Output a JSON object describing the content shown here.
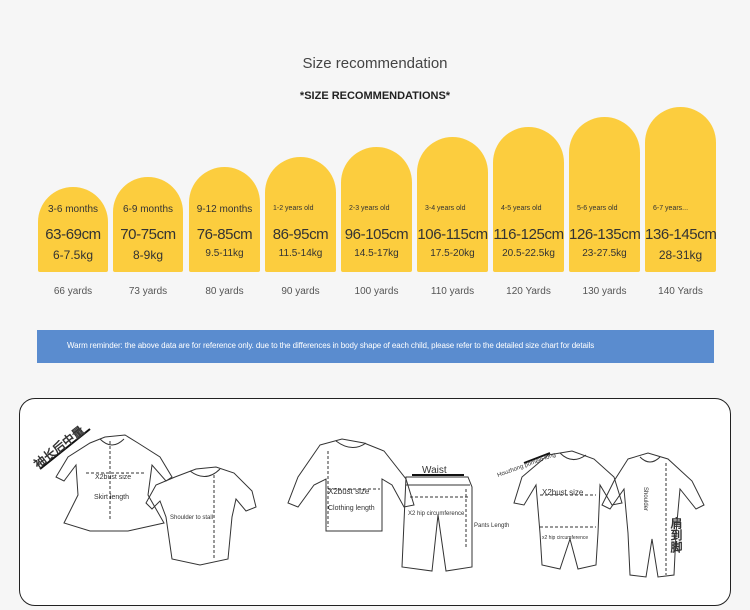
{
  "title": "Size recommendation",
  "subtitle": "*SIZE RECOMMENDATIONS*",
  "colors": {
    "pill": "#fccd3e",
    "banner": "#5a8ccf",
    "background": "#f6f6f6"
  },
  "sizes": [
    {
      "age": "3-6 months",
      "height": "63-69cm",
      "weight": "6-7.5kg",
      "yards": "66 yards"
    },
    {
      "age": "6-9 months",
      "height": "70-75cm",
      "weight": "8-9kg",
      "yards": "73 yards"
    },
    {
      "age": "9-12 months",
      "height": "76-85cm",
      "weight": "9.5-11kg",
      "yards": "80 yards"
    },
    {
      "age": "1-2 years old",
      "height": "86-95cm",
      "weight": "11.5-14kg",
      "yards": "90 yards"
    },
    {
      "age": "2-3 years old",
      "height": "96-105cm",
      "weight": "14.5-17kg",
      "yards": "100 yards"
    },
    {
      "age": "3-4 years old",
      "height": "106-115cm",
      "weight": "17.5-20kg",
      "yards": "110 yards"
    },
    {
      "age": "4-5 years old",
      "height": "116-125cm",
      "weight": "20.5-22.5kg",
      "yards": "120 Yards"
    },
    {
      "age": "5-6 years old",
      "height": "126-135cm",
      "weight": "23-27.5kg",
      "yards": "130 yards"
    },
    {
      "age": "6-7 years...",
      "height": "136-145cm",
      "weight": "28-31kg",
      "yards": "140 Yards"
    }
  ],
  "reminder": "Warm reminder: the above data are for reference only. due to the differences in body shape of each child, please refer to the detailed size chart for details",
  "diagrams": {
    "sleeve_cn": "袖长后中量",
    "bust1": "X2bust size",
    "skirt_length": "Skirt length",
    "shoulder_to_stall": "Shoulder to stall",
    "bust2": "X2bust size",
    "clothing_length": "Clothing length",
    "waist": "Waist",
    "hip": "X2 hip circumference",
    "pants_length": "Pants Length",
    "houzhong": "Houzhong pomelo long",
    "bust3": "X2bust size",
    "hip_small": "x2 hip circumference",
    "shoulder": "Shoulder",
    "cn_shoulder_foot": "肩到脚"
  }
}
